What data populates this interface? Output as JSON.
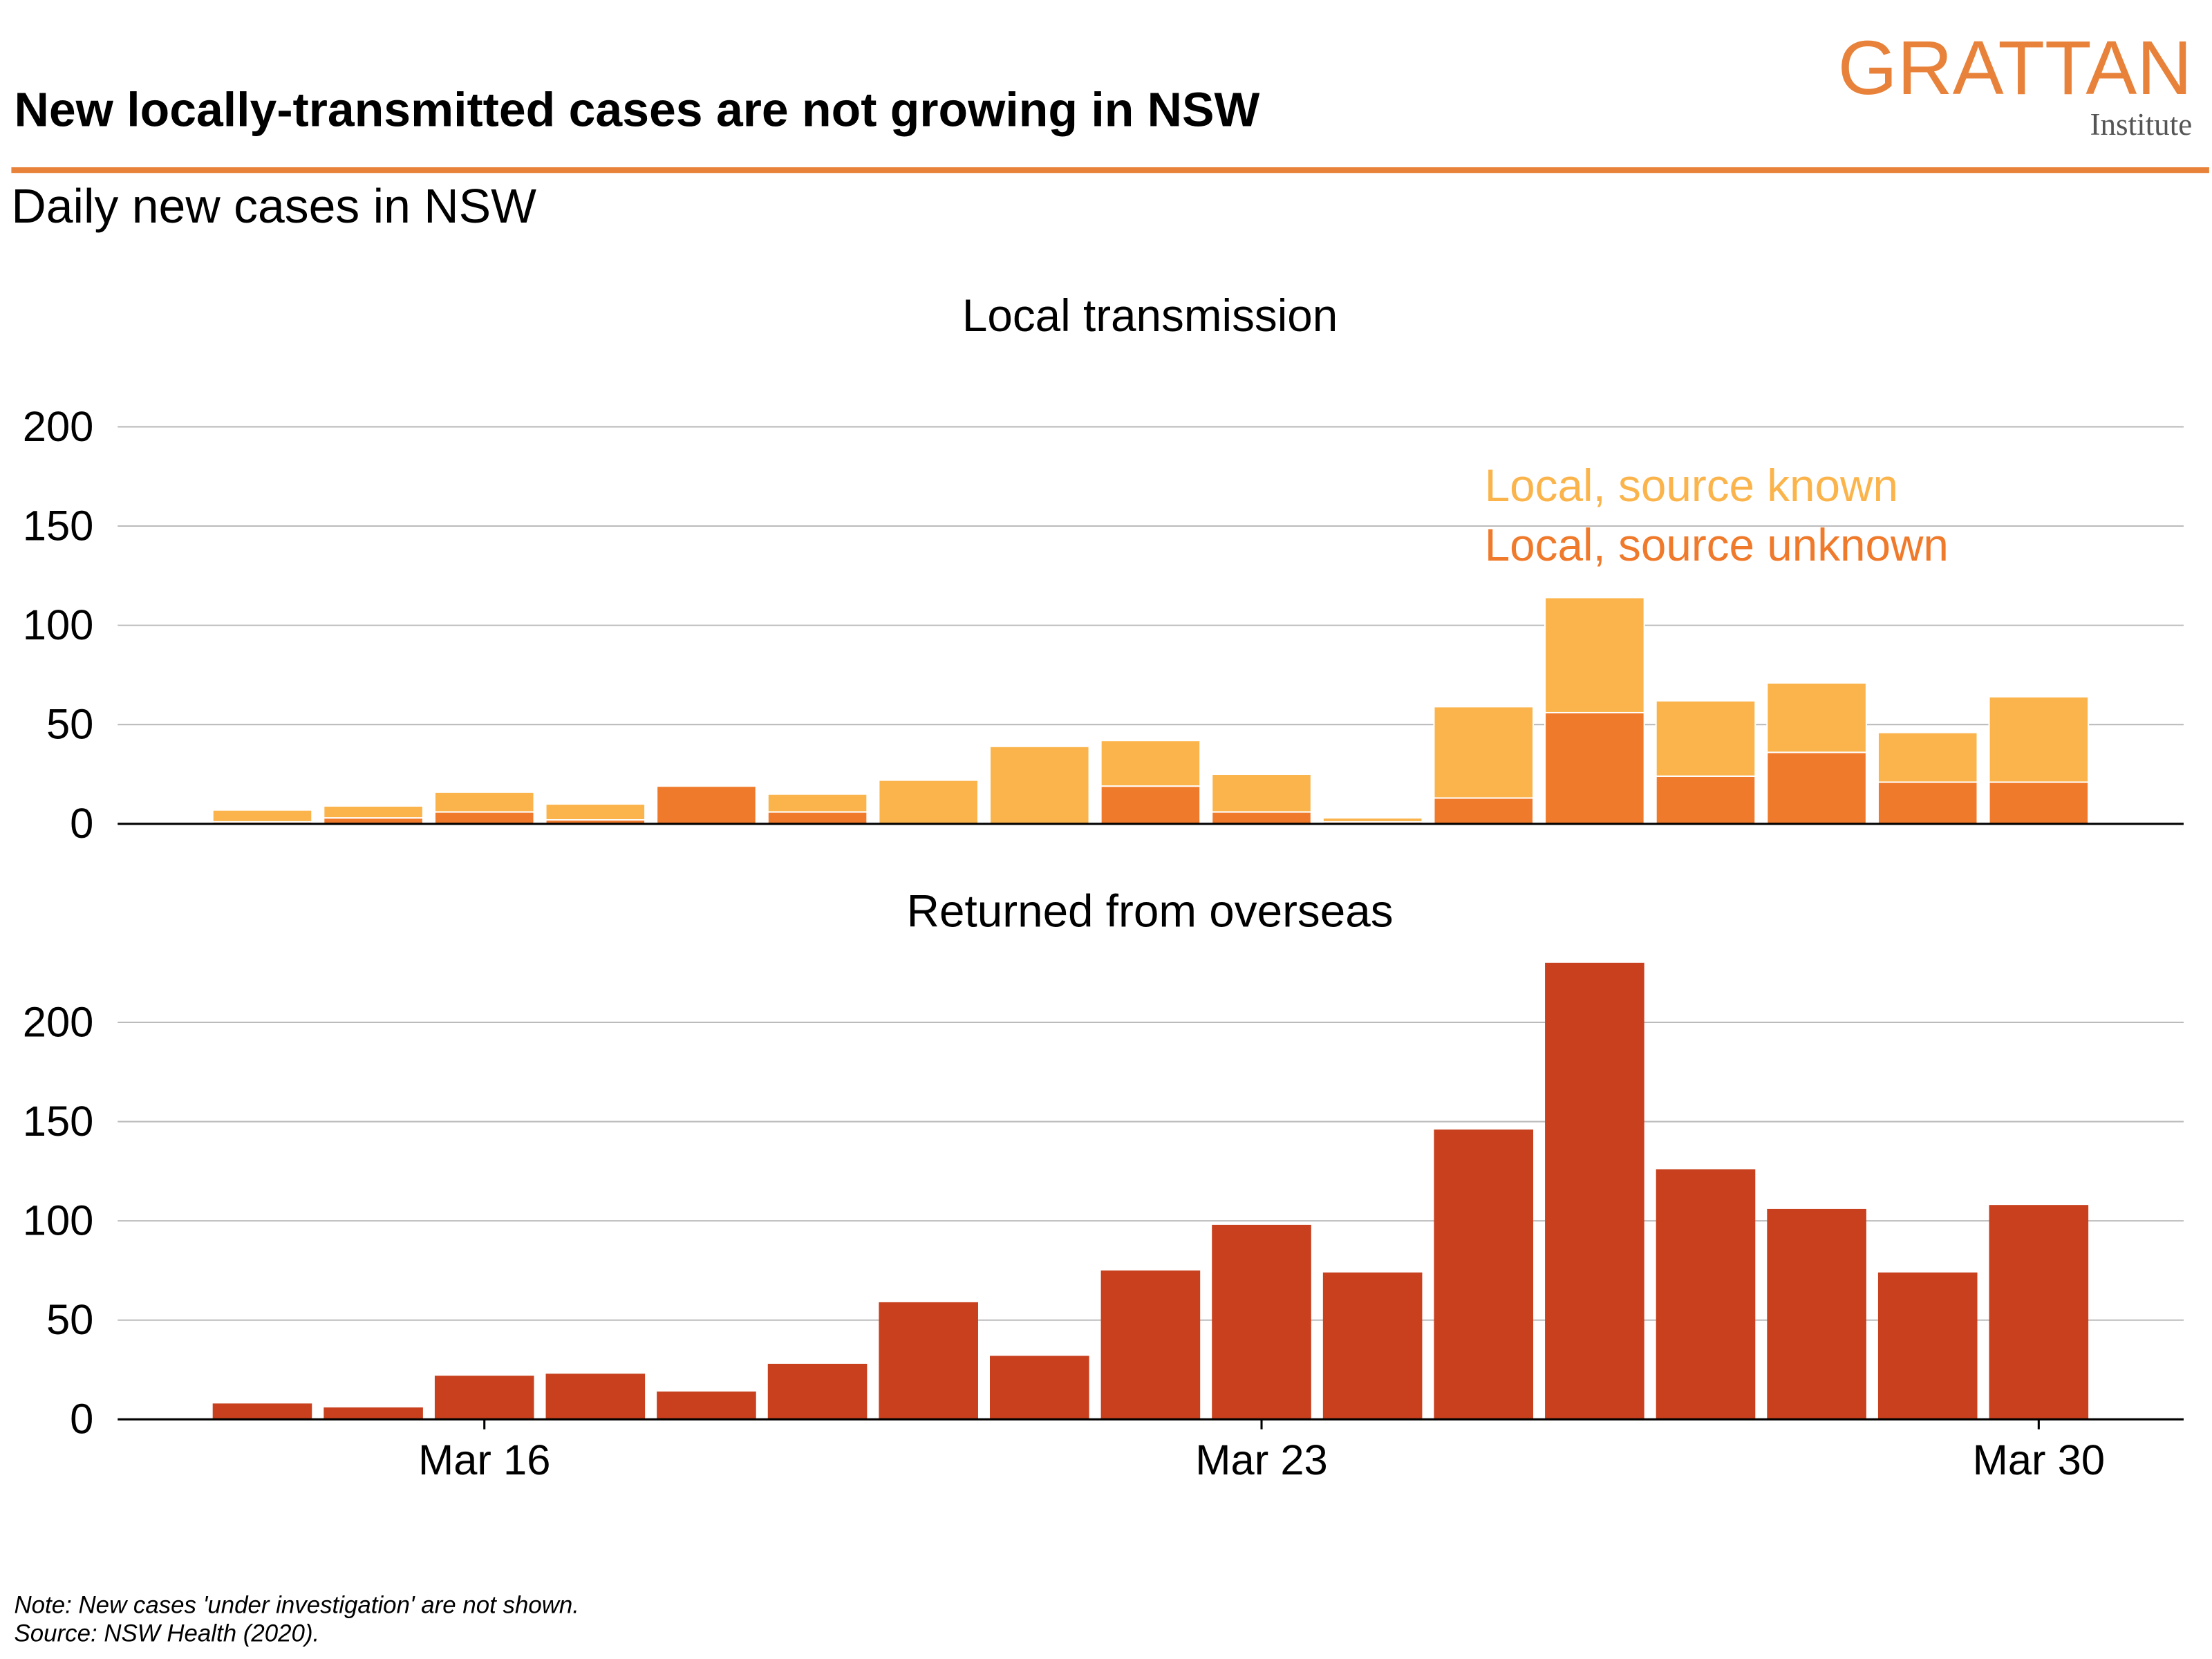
{
  "header": {
    "title": "New locally-transmitted cases are not growing in NSW",
    "subtitle": "Daily new cases in NSW",
    "logo": "GRATTAN",
    "logo_sub": "Institute"
  },
  "footer": {
    "note": "Note: New cases 'under investigation' are not shown.",
    "source": "Source: NSW Health (2020)."
  },
  "chart_data": [
    {
      "type": "stacked-bar",
      "title": "Local transmission",
      "categories": [
        null,
        null,
        null,
        null,
        null,
        null,
        null,
        null,
        null,
        null,
        null,
        null,
        null,
        null,
        null,
        null,
        null
      ],
      "series": [
        {
          "name": "Local, source unknown",
          "color": "#f07a2b",
          "values": [
            1,
            3,
            6,
            2,
            19,
            6,
            0,
            0,
            19,
            6,
            1,
            13,
            56,
            24,
            36,
            21,
            21
          ]
        },
        {
          "name": "Local, source known",
          "color": "#fbb44b",
          "values": [
            6,
            6,
            10,
            8,
            0,
            9,
            22,
            39,
            23,
            19,
            2,
            46,
            58,
            38,
            35,
            25,
            43
          ]
        }
      ],
      "ylim": [
        0,
        200
      ],
      "yticks": [
        0,
        50,
        100,
        150,
        200
      ],
      "grid": true
    },
    {
      "type": "bar",
      "title": "Returned from overseas",
      "categories": [
        null,
        null,
        "Mar 16",
        null,
        null,
        null,
        null,
        null,
        null,
        "Mar 23",
        null,
        null,
        null,
        null,
        null,
        null,
        "Mar 30"
      ],
      "values": [
        8,
        6,
        22,
        23,
        14,
        28,
        59,
        32,
        75,
        98,
        74,
        146,
        230,
        126,
        106,
        74,
        108
      ],
      "color": "#c8401e",
      "ylim": [
        0,
        230
      ],
      "yticks": [
        0,
        50,
        100,
        150,
        200
      ],
      "grid": true
    }
  ]
}
